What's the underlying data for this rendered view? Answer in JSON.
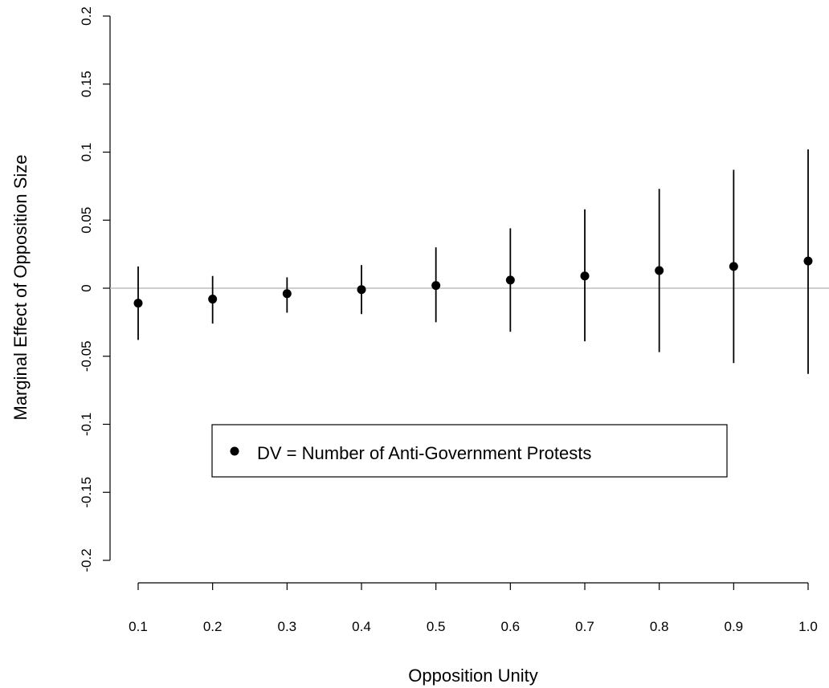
{
  "chart_data": {
    "type": "scatter",
    "title": "",
    "xlabel": "Opposition Unity",
    "ylabel": "Marginal Effect of Opposition Size",
    "x_ticks": [
      "0.1",
      "0.2",
      "0.3",
      "0.4",
      "0.5",
      "0.6",
      "0.7",
      "0.8",
      "0.9",
      "1.0"
    ],
    "y_ticks": [
      "-0.2",
      "-0.15",
      "-0.1",
      "-0.05",
      "0",
      "0.05",
      "0.1",
      "0.15",
      "0.2"
    ],
    "y_tick_values": [
      -0.2,
      -0.15,
      -0.1,
      -0.05,
      0,
      0.05,
      0.1,
      0.15,
      0.2
    ],
    "xlim": [
      0.1,
      1.0
    ],
    "ylim": [
      -0.2,
      0.2
    ],
    "reference_line_y": 0,
    "grid": false,
    "legend": {
      "position": "bottom-center",
      "entries": [
        "DV = Number of Anti-Government Protests"
      ]
    },
    "series": [
      {
        "name": "DV = Number of Anti-Government Protests",
        "x": [
          0.1,
          0.2,
          0.3,
          0.4,
          0.5,
          0.6,
          0.7,
          0.8,
          0.9,
          1.0
        ],
        "y": [
          -0.011,
          -0.008,
          -0.004,
          -0.001,
          0.002,
          0.006,
          0.009,
          0.013,
          0.016,
          0.02
        ],
        "lower": [
          -0.038,
          -0.026,
          -0.018,
          -0.019,
          -0.025,
          -0.032,
          -0.039,
          -0.047,
          -0.055,
          -0.063
        ],
        "upper": [
          0.016,
          0.009,
          0.008,
          0.017,
          0.03,
          0.044,
          0.058,
          0.073,
          0.087,
          0.102
        ]
      }
    ],
    "colors": {
      "points": "#000000",
      "error_bars": "#000000",
      "reference_line": "#bebebe",
      "axes": "#000000"
    }
  }
}
